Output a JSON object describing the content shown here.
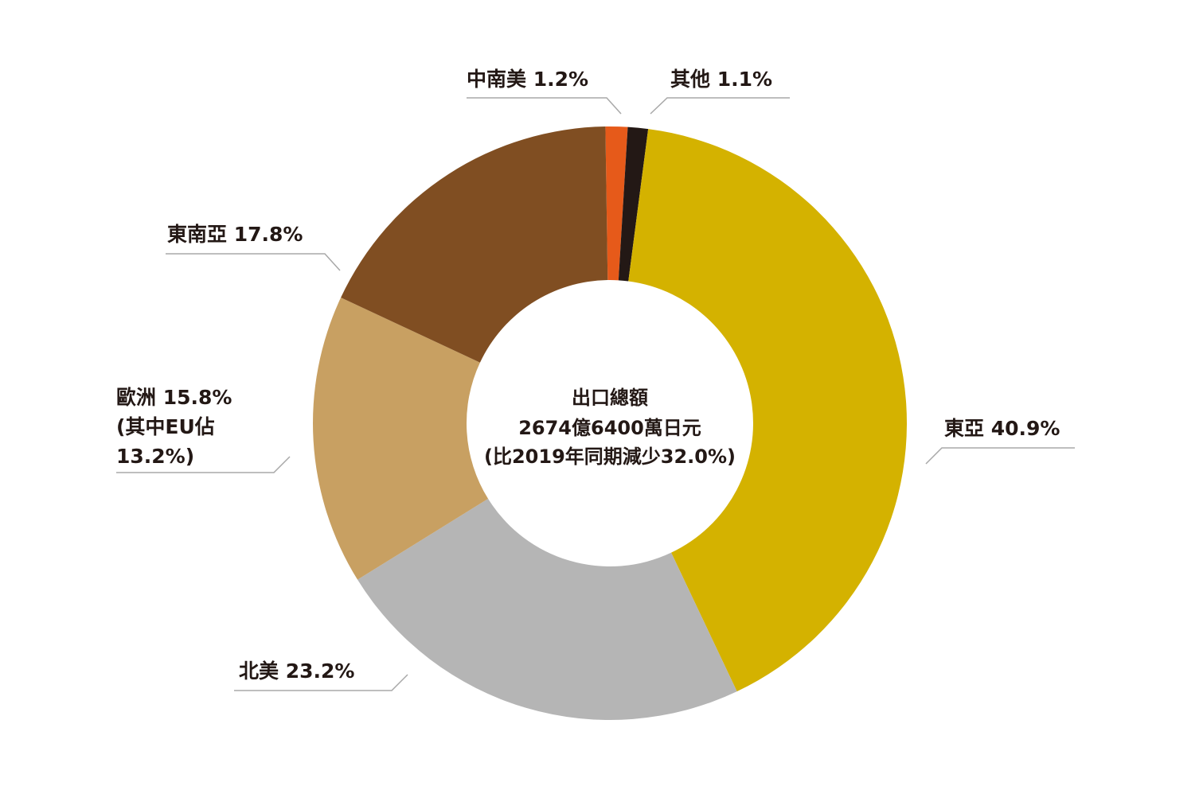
{
  "chart_data": {
    "type": "pie",
    "donut": true,
    "center_label": {
      "line1": "出口總額",
      "line2": "2674億6400萬日元",
      "line3": "(比2019年同期減少32.0%)"
    },
    "slices": [
      {
        "id": "east-asia",
        "label": "東亞",
        "value": 40.9,
        "value_label": "40.9%",
        "color": "#d4b200"
      },
      {
        "id": "north-america",
        "label": "北美",
        "value": 23.2,
        "value_label": "23.2%",
        "color": "#b5b5b5"
      },
      {
        "id": "europe",
        "label": "歐洲",
        "value": 15.8,
        "value_label": "15.8%",
        "note_lines": [
          "(其中EU佔",
          "13.2%)"
        ],
        "color": "#c8a062"
      },
      {
        "id": "southeast-asia",
        "label": "東南亞",
        "value": 17.8,
        "value_label": "17.8%",
        "color": "#804e22"
      },
      {
        "id": "latin-america",
        "label": "中南美",
        "value": 1.2,
        "value_label": "1.2%",
        "color": "#e65a1a"
      },
      {
        "id": "other",
        "label": "其他",
        "value": 1.1,
        "value_label": "1.1%",
        "color": "#231815"
      }
    ]
  }
}
